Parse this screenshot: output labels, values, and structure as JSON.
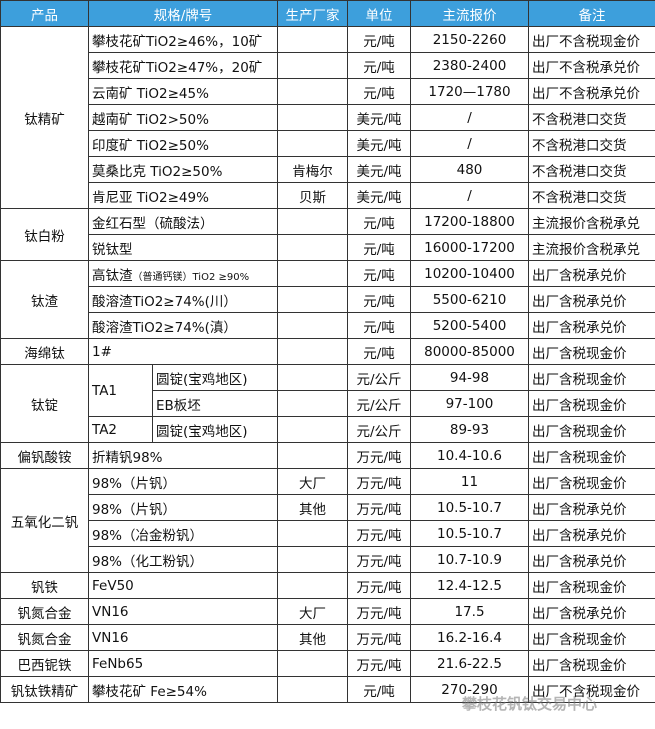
{
  "header": [
    "产品",
    "规格/牌号",
    "生产厂家",
    "单位",
    "主流报价",
    "备注"
  ],
  "groups": [
    {
      "product": "钛精矿",
      "items": [
        {
          "spec": "攀枝花矿TiO2≥46%，10矿",
          "unit": "元/吨",
          "price": "2150-2260",
          "note": "出厂不含税现金价"
        },
        {
          "spec": "攀枝花矿TiO2≥47%，20矿",
          "unit": "元/吨",
          "price": "2380-2400",
          "note": "出厂不含税承兑价"
        },
        {
          "spec": "云南矿 TiO2≥45%",
          "unit": "元/吨",
          "price": "1720—1780",
          "note": "出厂不含税承兑价"
        },
        {
          "spec": "越南矿 TiO2>50%",
          "unit": "美元/吨",
          "price": "/",
          "note": "不含税港口交货"
        },
        {
          "spec": "印度矿 TiO2≥50%",
          "unit": "美元/吨",
          "price": "/",
          "note": "不含税港口交货"
        },
        {
          "spec": "莫桑比克 TiO2≥50%",
          "maker": "肯梅尔",
          "unit": "美元/吨",
          "price": "480",
          "note": "不含税港口交货"
        },
        {
          "spec": "肯尼亚 TiO2≥49%",
          "maker": "贝斯",
          "unit": "美元/吨",
          "price": "/",
          "note": "不含税港口交货"
        }
      ]
    },
    {
      "product": "钛白粉",
      "items": [
        {
          "spec": "金红石型（硫酸法）",
          "unit": "元/吨",
          "price": "17200-18800",
          "note": "主流报价含税承兑"
        },
        {
          "spec": "锐钛型",
          "unit": "元/吨",
          "price": "16000-17200",
          "note": "主流报价含税承兑"
        }
      ]
    },
    {
      "product": "钛渣",
      "items": [
        {
          "spec": "高钛渣",
          "spec_note": "（普通钙镁）TiO2 ≥90%",
          "unit": "元/吨",
          "price": "10200-10400",
          "note": "出厂含税承兑价"
        },
        {
          "spec": "酸溶渣TiO2≥74%(川）",
          "unit": "元/吨",
          "price": "5500-6210",
          "note": "出厂含税承兑价"
        },
        {
          "spec": "酸溶渣TiO2≥74%(滇）",
          "unit": "元/吨",
          "price": "5200-5400",
          "note": "出厂含税承兑价"
        }
      ]
    },
    {
      "product": "海绵钛",
      "items": [
        {
          "spec": "1#",
          "unit": "元/吨",
          "price": "80000-85000",
          "note": "出厂含税现金价"
        }
      ]
    },
    {
      "product": "钛锭",
      "grades": [
        {
          "grade": "TA1",
          "items": [
            {
              "spec": "圆锭(宝鸡地区)",
              "unit": "元/公斤",
              "price": "94-98",
              "note": "出厂含税现金价"
            },
            {
              "spec": "EB板坯",
              "unit": "元/公斤",
              "price": "97-100",
              "note": "出厂含税现金价"
            }
          ]
        },
        {
          "grade": "TA2",
          "items": [
            {
              "spec": "圆锭(宝鸡地区)",
              "unit": "元/公斤",
              "price": "89-93",
              "note": "出厂含税现金价"
            }
          ]
        }
      ]
    },
    {
      "product": "偏钒酸铵",
      "items": [
        {
          "spec": "折精钒98%",
          "unit": "万元/吨",
          "price": "10.4-10.6",
          "note": "出厂含税现金价"
        }
      ]
    },
    {
      "product": "五氧化二钒",
      "items": [
        {
          "spec": "98%（片钒）",
          "maker": "大厂",
          "unit": "万元/吨",
          "price": "11",
          "note": "出厂含税现金价"
        },
        {
          "spec": "98%（片钒）",
          "maker": "其他",
          "unit": "万元/吨",
          "price": "10.5-10.7",
          "note": "出厂含税承兑价"
        },
        {
          "spec": "98%（冶金粉钒）",
          "unit": "万元/吨",
          "price": "10.5-10.7",
          "note": "出厂含税承兑价"
        },
        {
          "spec": "98%（化工粉钒）",
          "unit": "万元/吨",
          "price": "10.7-10.9",
          "note": "出厂含税承兑价"
        }
      ]
    },
    {
      "product": "钒铁",
      "items": [
        {
          "spec": "FeV50",
          "unit": "万元/吨",
          "price": "12.4-12.5",
          "note": "出厂含税现金价"
        }
      ]
    },
    {
      "product": "钒氮合金",
      "items": [
        {
          "spec": "VN16",
          "maker": "大厂",
          "unit": "万元/吨",
          "price": "17.5",
          "note": "出厂含税承兑价"
        }
      ]
    },
    {
      "product": "钒氮合金",
      "items": [
        {
          "spec": "VN16",
          "maker": "其他",
          "unit": "万元/吨",
          "price": "16.2-16.4",
          "note": "出厂含税现金价"
        }
      ]
    },
    {
      "product": "巴西铌铁",
      "items": [
        {
          "spec": "FeNb65",
          "unit": "万元/吨",
          "price": "21.6-22.5",
          "note": "出厂含税现金价"
        }
      ]
    },
    {
      "product": "钒钛铁精矿",
      "items": [
        {
          "spec": "攀枝花矿 Fe≥54%",
          "unit": "元/吨",
          "price": "270-290",
          "note": "出厂不含税现金价"
        }
      ]
    }
  ],
  "watermark": "攀枝花钒钛交易中心"
}
